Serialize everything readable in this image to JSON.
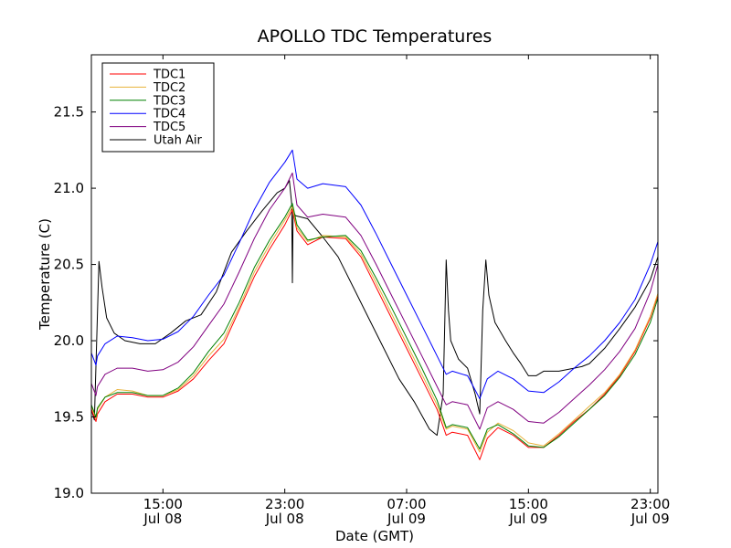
{
  "chart_data": {
    "type": "line",
    "title": "APOLLO TDC Temperatures",
    "xlabel": "Date (GMT)",
    "ylabel": "Temperature (C)",
    "ylim": [
      19.0,
      21.875
    ],
    "xlim": [
      10.3,
      47.5
    ],
    "yticks": [
      {
        "value": 19.0,
        "label": "19.0"
      },
      {
        "value": 19.5,
        "label": "19.5"
      },
      {
        "value": 20.0,
        "label": "20.0"
      },
      {
        "value": 20.5,
        "label": "20.5"
      },
      {
        "value": 21.0,
        "label": "21.0"
      },
      {
        "value": 21.5,
        "label": "21.5"
      }
    ],
    "xticks": [
      {
        "value": 15,
        "time": "15:00",
        "date": "Jul 08"
      },
      {
        "value": 23,
        "time": "23:00",
        "date": "Jul 08"
      },
      {
        "value": 31,
        "time": "07:00",
        "date": "Jul 09"
      },
      {
        "value": 39,
        "time": "15:00",
        "date": "Jul 09"
      },
      {
        "value": 47,
        "time": "23:00",
        "date": "Jul 09"
      }
    ],
    "legend_position": "top-left",
    "series": [
      {
        "name": "TDC1",
        "color": "#ff0000",
        "x": [
          10.3,
          10.6,
          10.7,
          11.2,
          12.0,
          13.0,
          14.0,
          15.0,
          16.0,
          17.0,
          18.0,
          19.0,
          20.0,
          21.0,
          22.0,
          23.0,
          23.5,
          23.8,
          24.5,
          25.5,
          27.0,
          28.0,
          29.0,
          30.0,
          31.0,
          32.0,
          33.0,
          33.6,
          34.0,
          35.0,
          35.8,
          36.3,
          37.0,
          38.0,
          39.0,
          40.0,
          41.0,
          42.0,
          43.0,
          44.0,
          45.0,
          46.0,
          47.0,
          47.5
        ],
        "y": [
          19.55,
          19.47,
          19.52,
          19.6,
          19.65,
          19.65,
          19.63,
          19.63,
          19.67,
          19.75,
          19.87,
          19.98,
          20.2,
          20.42,
          20.6,
          20.76,
          20.86,
          20.72,
          20.63,
          20.68,
          20.67,
          20.55,
          20.35,
          20.15,
          19.95,
          19.75,
          19.55,
          19.38,
          19.4,
          19.38,
          19.22,
          19.36,
          19.43,
          19.38,
          19.3,
          19.3,
          19.38,
          19.47,
          19.55,
          19.65,
          19.77,
          19.93,
          20.15,
          20.3
        ]
      },
      {
        "name": "TDC2",
        "color": "#e8b23a",
        "x": [
          10.3,
          10.6,
          10.7,
          11.2,
          12.0,
          13.0,
          14.0,
          15.0,
          16.0,
          17.0,
          18.0,
          19.0,
          20.0,
          21.0,
          22.0,
          23.0,
          23.5,
          23.8,
          24.5,
          25.5,
          27.0,
          28.0,
          29.0,
          30.0,
          31.0,
          32.0,
          33.0,
          33.6,
          34.0,
          35.0,
          35.8,
          36.3,
          37.0,
          38.0,
          39.0,
          40.0,
          41.0,
          42.0,
          43.0,
          44.0,
          45.0,
          46.0,
          47.0,
          47.5
        ],
        "y": [
          19.57,
          19.49,
          19.55,
          19.63,
          19.68,
          19.67,
          19.64,
          19.64,
          19.68,
          19.77,
          19.9,
          20.01,
          20.22,
          20.45,
          20.63,
          20.79,
          20.88,
          20.74,
          20.65,
          20.69,
          20.68,
          20.57,
          20.38,
          20.18,
          19.98,
          19.78,
          19.58,
          19.42,
          19.44,
          19.42,
          19.27,
          19.4,
          19.46,
          19.41,
          19.33,
          19.31,
          19.39,
          19.48,
          19.57,
          19.66,
          19.78,
          19.94,
          20.16,
          20.31
        ]
      },
      {
        "name": "TDC3",
        "color": "#008000",
        "x": [
          10.3,
          10.6,
          10.7,
          11.2,
          12.0,
          13.0,
          14.0,
          15.0,
          16.0,
          17.0,
          18.0,
          19.0,
          20.0,
          21.0,
          22.0,
          23.0,
          23.5,
          23.8,
          24.5,
          25.5,
          27.0,
          28.0,
          29.0,
          30.0,
          31.0,
          32.0,
          33.0,
          33.6,
          34.0,
          35.0,
          35.8,
          36.3,
          37.0,
          38.0,
          39.0,
          40.0,
          41.0,
          42.0,
          43.0,
          44.0,
          45.0,
          46.0,
          47.0,
          47.5
        ],
        "y": [
          19.58,
          19.5,
          19.56,
          19.63,
          19.66,
          19.66,
          19.64,
          19.64,
          19.69,
          19.79,
          19.93,
          20.05,
          20.25,
          20.48,
          20.66,
          20.81,
          20.9,
          20.76,
          20.66,
          20.68,
          20.69,
          20.59,
          20.41,
          20.22,
          20.02,
          19.82,
          19.61,
          19.43,
          19.45,
          19.43,
          19.29,
          19.42,
          19.45,
          19.39,
          19.31,
          19.3,
          19.37,
          19.46,
          19.55,
          19.64,
          19.76,
          19.91,
          20.12,
          20.28
        ]
      },
      {
        "name": "TDC4",
        "color": "#0000ff",
        "x": [
          10.3,
          10.6,
          10.7,
          11.2,
          12.0,
          13.0,
          14.0,
          15.0,
          16.0,
          17.0,
          18.0,
          19.0,
          20.0,
          21.0,
          22.0,
          23.0,
          23.5,
          23.8,
          24.5,
          25.5,
          27.0,
          28.0,
          29.0,
          30.0,
          31.0,
          32.0,
          33.0,
          33.6,
          34.0,
          35.0,
          35.8,
          36.3,
          37.0,
          38.0,
          39.0,
          40.0,
          41.0,
          42.0,
          43.0,
          44.0,
          45.0,
          46.0,
          47.0,
          47.5
        ],
        "y": [
          19.92,
          19.84,
          19.9,
          19.98,
          20.03,
          20.02,
          20.0,
          20.01,
          20.06,
          20.16,
          20.3,
          20.43,
          20.64,
          20.86,
          21.04,
          21.17,
          21.25,
          21.06,
          21.0,
          21.03,
          21.01,
          20.89,
          20.7,
          20.5,
          20.3,
          20.1,
          19.9,
          19.78,
          19.8,
          19.77,
          19.62,
          19.75,
          19.8,
          19.75,
          19.67,
          19.66,
          19.73,
          19.82,
          19.9,
          20.0,
          20.12,
          20.27,
          20.5,
          20.65
        ]
      },
      {
        "name": "TDC5",
        "color": "#800080",
        "x": [
          10.3,
          10.6,
          10.7,
          11.2,
          12.0,
          13.0,
          14.0,
          15.0,
          16.0,
          17.0,
          18.0,
          19.0,
          20.0,
          21.0,
          22.0,
          23.0,
          23.5,
          23.8,
          24.5,
          25.5,
          27.0,
          28.0,
          29.0,
          30.0,
          31.0,
          32.0,
          33.0,
          33.6,
          34.0,
          35.0,
          35.8,
          36.3,
          37.0,
          38.0,
          39.0,
          40.0,
          41.0,
          42.0,
          43.0,
          44.0,
          45.0,
          46.0,
          47.0,
          47.5
        ],
        "y": [
          19.72,
          19.64,
          19.7,
          19.78,
          19.82,
          19.82,
          19.8,
          19.81,
          19.86,
          19.96,
          20.1,
          20.24,
          20.45,
          20.67,
          20.86,
          21.0,
          21.1,
          20.89,
          20.81,
          20.83,
          20.81,
          20.69,
          20.5,
          20.3,
          20.1,
          19.9,
          19.7,
          19.58,
          19.6,
          19.58,
          19.42,
          19.56,
          19.6,
          19.55,
          19.47,
          19.46,
          19.53,
          19.62,
          19.71,
          19.81,
          19.93,
          20.08,
          20.32,
          20.5
        ]
      },
      {
        "name": "Utah Air",
        "color": "#000000",
        "x": [
          10.3,
          10.5,
          10.8,
          11.0,
          11.3,
          11.8,
          12.5,
          13.5,
          14.5,
          15.5,
          16.5,
          17.5,
          18.5,
          19.5,
          20.5,
          21.5,
          22.5,
          23.0,
          23.3,
          23.45,
          23.5,
          23.55,
          23.7,
          24.5,
          25.5,
          26.5,
          27.5,
          28.5,
          29.5,
          30.5,
          31.5,
          32.5,
          33.0,
          33.4,
          33.6,
          33.75,
          33.9,
          34.4,
          35.0,
          35.5,
          35.8,
          36.0,
          36.2,
          36.4,
          36.8,
          37.5,
          38.0,
          38.5,
          39.0,
          39.5,
          40.0,
          41.0,
          42.0,
          42.5,
          43.0,
          44.0,
          45.0,
          46.0,
          47.0,
          47.5
        ],
        "y": [
          19.55,
          19.48,
          20.52,
          20.35,
          20.15,
          20.05,
          20.0,
          19.98,
          19.98,
          20.05,
          20.13,
          20.17,
          20.32,
          20.58,
          20.72,
          20.85,
          20.97,
          21.0,
          21.05,
          20.9,
          20.38,
          20.85,
          20.82,
          20.8,
          20.68,
          20.55,
          20.35,
          20.15,
          19.95,
          19.75,
          19.6,
          19.42,
          19.38,
          19.65,
          20.53,
          20.2,
          20.0,
          19.88,
          19.82,
          19.65,
          19.52,
          20.2,
          20.53,
          20.3,
          20.12,
          20.0,
          19.92,
          19.85,
          19.77,
          19.77,
          19.8,
          19.8,
          19.82,
          19.83,
          19.85,
          19.95,
          20.08,
          20.22,
          20.4,
          20.55
        ]
      }
    ]
  }
}
